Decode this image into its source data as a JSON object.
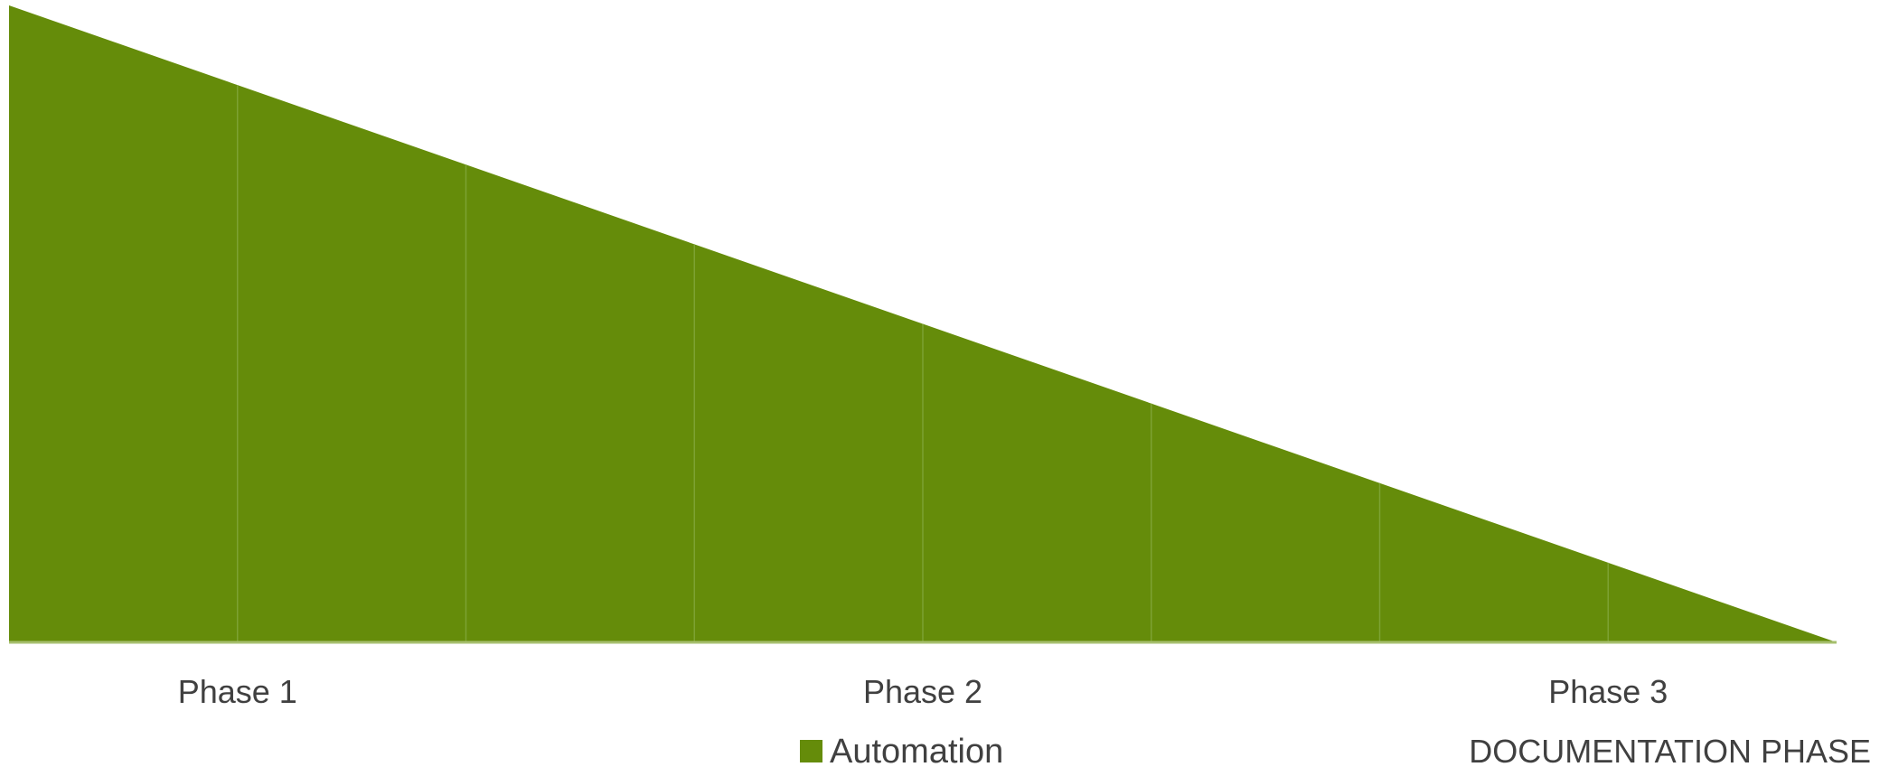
{
  "chart_data": {
    "type": "area",
    "x": [
      0,
      1,
      2,
      3,
      4,
      5,
      6,
      7,
      8
    ],
    "series": [
      {
        "name": "Automation",
        "values": [
          8,
          7,
          6,
          5,
          4,
          3,
          2,
          1,
          0
        ],
        "color": "#658C0A"
      }
    ],
    "x_tick_labels": [
      {
        "x": 1,
        "label": "Phase 1"
      },
      {
        "x": 4,
        "label": "Phase 2"
      },
      {
        "x": 7,
        "label": "Phase 3"
      }
    ],
    "ylim": [
      0,
      8
    ],
    "grid": false,
    "legend_position": "bottom",
    "annotation": "DOCUMENTATION PHASE",
    "colors": {
      "fill": "#658C0A",
      "divider": "#7DA233",
      "axis": "#A6BF6E",
      "text": "#404040"
    }
  }
}
